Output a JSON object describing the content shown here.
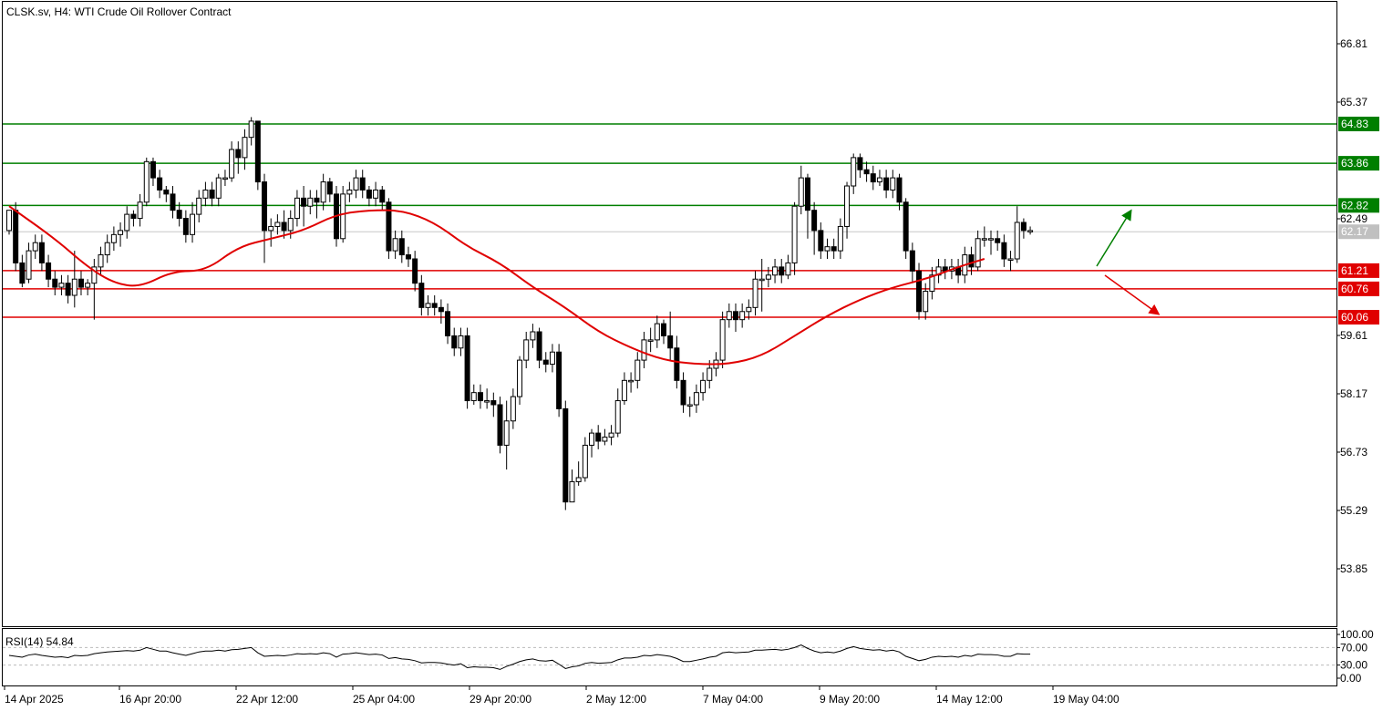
{
  "header": {
    "title": "CLSK.sv, H4:  WTI Crude Oil Rollover Contract"
  },
  "rsi_panel": {
    "label": "RSI(14) 54.84"
  },
  "colors": {
    "resistance": "#007f00",
    "support": "#e00000",
    "ma": "#e00000",
    "current_price_tag": "#c0c0c0",
    "bull_candle": "#ffffff",
    "bear_candle": "#000000"
  },
  "chart_data": [
    {
      "type": "candlestick",
      "symbol": "CLSK.sv",
      "timeframe": "H4",
      "instrument": "WTI Crude Oil Rollover Contract",
      "ylim": [
        52.8,
        67.7
      ],
      "y_ticks": [
        "66.81",
        "65.37",
        "62.49",
        "59.61",
        "58.17",
        "56.73",
        "55.29",
        "53.85"
      ],
      "x_ticks": [
        "14 Apr 2025",
        "16 Apr 20:00",
        "22 Apr 12:00",
        "25 Apr 04:00",
        "29 Apr 20:00",
        "2 May 12:00",
        "7 May 04:00",
        "9 May 20:00",
        "14 May 12:00",
        "19 May 04:00"
      ],
      "current_price": "62.17",
      "resistance_levels": [
        "64.83",
        "63.86",
        "62.82"
      ],
      "support_levels": [
        "61.21",
        "60.76",
        "60.06"
      ],
      "ma_points": [
        [
          0,
          62.8
        ],
        [
          7,
          62.0
        ],
        [
          12,
          61.3
        ],
        [
          16,
          60.9
        ],
        [
          20,
          60.8
        ],
        [
          25,
          61.2
        ],
        [
          30,
          61.2
        ],
        [
          35,
          61.8
        ],
        [
          40,
          62.0
        ],
        [
          45,
          62.2
        ],
        [
          50,
          62.6
        ],
        [
          55,
          62.7
        ],
        [
          60,
          62.7
        ],
        [
          65,
          62.4
        ],
        [
          70,
          61.8
        ],
        [
          75,
          61.4
        ],
        [
          80,
          60.8
        ],
        [
          85,
          60.3
        ],
        [
          90,
          59.7
        ],
        [
          95,
          59.3
        ],
        [
          100,
          59.0
        ],
        [
          105,
          58.9
        ],
        [
          110,
          58.9
        ],
        [
          115,
          59.1
        ],
        [
          120,
          59.6
        ],
        [
          125,
          60.1
        ],
        [
          130,
          60.5
        ],
        [
          135,
          60.8
        ],
        [
          140,
          61.0
        ],
        [
          145,
          61.3
        ],
        [
          149,
          61.5
        ]
      ],
      "candles": [
        [
          62.2,
          62.7,
          62.3,
          62.1
        ],
        [
          62.7,
          61.4,
          62.9,
          61.2
        ],
        [
          61.4,
          60.9,
          61.6,
          60.8
        ],
        [
          61.0,
          61.7,
          61.9,
          60.9
        ],
        [
          61.7,
          61.9,
          62.1,
          61.5
        ],
        [
          61.9,
          61.4,
          62.1,
          61.2
        ],
        [
          61.4,
          61.0,
          61.6,
          60.8
        ],
        [
          61.0,
          60.8,
          61.2,
          60.6
        ],
        [
          60.8,
          60.9,
          61.1,
          60.6
        ],
        [
          60.9,
          60.6,
          61.1,
          60.4
        ],
        [
          60.6,
          61.0,
          61.7,
          60.3
        ],
        [
          61.0,
          60.8,
          61.2,
          60.6
        ],
        [
          60.8,
          60.9,
          61.0,
          60.6
        ],
        [
          60.9,
          61.3,
          61.5,
          60.0
        ],
        [
          61.3,
          61.6,
          61.8,
          61.1
        ],
        [
          61.6,
          61.9,
          62.1,
          61.4
        ],
        [
          61.9,
          62.1,
          62.3,
          61.7
        ],
        [
          62.1,
          62.2,
          62.4,
          61.8
        ],
        [
          62.2,
          62.6,
          62.8,
          62.0
        ],
        [
          62.6,
          62.5,
          62.7,
          62.3
        ],
        [
          62.5,
          62.9,
          63.1,
          62.3
        ],
        [
          62.9,
          63.9,
          64.0,
          62.8
        ],
        [
          63.9,
          63.5,
          64.0,
          63.3
        ],
        [
          63.5,
          63.2,
          63.7,
          63.0
        ],
        [
          63.2,
          63.1,
          63.3,
          62.9
        ],
        [
          63.1,
          62.7,
          63.3,
          62.5
        ],
        [
          62.7,
          62.5,
          62.9,
          62.3
        ],
        [
          62.5,
          62.1,
          62.7,
          61.9
        ],
        [
          62.1,
          62.6,
          62.9,
          61.9
        ],
        [
          62.6,
          63.0,
          63.2,
          62.4
        ],
        [
          63.0,
          63.2,
          63.4,
          62.8
        ],
        [
          63.2,
          63.0,
          63.4,
          62.8
        ],
        [
          63.0,
          63.5,
          63.6,
          62.8
        ],
        [
          63.5,
          63.5,
          63.7,
          63.3
        ],
        [
          63.5,
          64.2,
          64.4,
          63.4
        ],
        [
          64.2,
          64.0,
          64.4,
          63.6
        ],
        [
          64.0,
          64.5,
          64.7,
          63.7
        ],
        [
          64.5,
          64.9,
          65.0,
          64.3
        ],
        [
          64.9,
          63.4,
          64.9,
          63.2
        ],
        [
          63.4,
          62.2,
          63.6,
          61.4
        ],
        [
          62.2,
          62.3,
          62.5,
          61.8
        ],
        [
          62.3,
          62.4,
          62.6,
          62.1
        ],
        [
          62.4,
          62.2,
          62.7,
          62.0
        ],
        [
          62.2,
          62.5,
          62.7,
          62.0
        ],
        [
          62.5,
          63.0,
          63.2,
          62.3
        ],
        [
          63.0,
          62.8,
          63.3,
          62.3
        ],
        [
          62.8,
          63.0,
          63.2,
          62.6
        ],
        [
          63.0,
          62.9,
          63.2,
          62.5
        ],
        [
          62.9,
          63.4,
          63.6,
          62.7
        ],
        [
          63.4,
          63.1,
          63.5,
          62.9
        ],
        [
          63.1,
          62.0,
          63.3,
          61.8
        ],
        [
          62.0,
          63.1,
          63.3,
          61.9
        ],
        [
          63.1,
          63.2,
          63.4,
          62.9
        ],
        [
          63.2,
          63.5,
          63.7,
          63.0
        ],
        [
          63.5,
          63.2,
          63.7,
          63.0
        ],
        [
          63.2,
          63.0,
          63.3,
          62.8
        ],
        [
          63.0,
          63.2,
          63.4,
          62.8
        ],
        [
          63.2,
          62.9,
          63.3,
          62.7
        ],
        [
          62.9,
          61.7,
          63.0,
          61.5
        ],
        [
          61.7,
          62.0,
          62.2,
          61.5
        ],
        [
          62.0,
          61.6,
          62.2,
          61.4
        ],
        [
          61.6,
          61.5,
          61.8,
          61.3
        ],
        [
          61.5,
          60.9,
          61.7,
          60.7
        ],
        [
          60.9,
          60.3,
          61.1,
          60.1
        ],
        [
          60.3,
          60.4,
          60.6,
          60.1
        ],
        [
          60.4,
          60.3,
          60.6,
          60.1
        ],
        [
          60.3,
          60.2,
          60.5,
          59.9
        ],
        [
          60.2,
          59.6,
          60.4,
          59.4
        ],
        [
          59.6,
          59.3,
          59.8,
          59.1
        ],
        [
          59.3,
          59.6,
          59.8,
          59.1
        ],
        [
          59.6,
          58.0,
          59.8,
          57.8
        ],
        [
          58.0,
          58.2,
          58.4,
          57.9
        ],
        [
          58.2,
          58.0,
          58.4,
          57.8
        ],
        [
          58.0,
          58.0,
          58.3,
          57.8
        ],
        [
          58.0,
          57.9,
          58.2,
          57.6
        ],
        [
          57.9,
          56.9,
          58.1,
          56.7
        ],
        [
          56.9,
          57.5,
          58.0,
          56.3
        ],
        [
          57.5,
          58.1,
          58.3,
          57.3
        ],
        [
          58.1,
          59.0,
          59.1,
          57.9
        ],
        [
          59.0,
          59.5,
          59.7,
          58.8
        ],
        [
          59.5,
          59.7,
          59.9,
          59.3
        ],
        [
          59.7,
          59.0,
          59.8,
          58.8
        ],
        [
          59.0,
          58.9,
          59.2,
          58.7
        ],
        [
          58.9,
          59.2,
          59.4,
          58.7
        ],
        [
          59.2,
          57.8,
          59.4,
          57.6
        ],
        [
          57.8,
          55.5,
          58.0,
          55.3
        ],
        [
          55.5,
          56.0,
          56.3,
          55.5
        ],
        [
          56.0,
          56.1,
          56.5,
          55.9
        ],
        [
          56.1,
          56.9,
          57.1,
          56.0
        ],
        [
          56.9,
          57.2,
          57.3,
          56.6
        ],
        [
          57.2,
          57.0,
          57.4,
          56.8
        ],
        [
          57.0,
          57.1,
          57.3,
          56.9
        ],
        [
          57.1,
          57.2,
          57.4,
          56.9
        ],
        [
          57.2,
          58.0,
          58.3,
          57.1
        ],
        [
          58.0,
          58.5,
          58.7,
          57.9
        ],
        [
          58.5,
          58.5,
          58.7,
          58.2
        ],
        [
          58.5,
          59.0,
          59.2,
          58.3
        ],
        [
          59.0,
          59.5,
          59.7,
          58.8
        ],
        [
          59.5,
          59.5,
          59.8,
          59.2
        ],
        [
          59.5,
          59.9,
          60.1,
          59.3
        ],
        [
          59.9,
          59.6,
          60.0,
          59.4
        ],
        [
          59.6,
          59.3,
          60.2,
          59.0
        ],
        [
          59.3,
          58.5,
          59.6,
          58.3
        ],
        [
          58.5,
          57.9,
          58.7,
          57.7
        ],
        [
          57.9,
          57.9,
          58.1,
          57.6
        ],
        [
          57.9,
          58.2,
          58.4,
          57.7
        ],
        [
          58.2,
          58.5,
          58.7,
          58.0
        ],
        [
          58.5,
          58.8,
          59.0,
          58.3
        ],
        [
          58.8,
          59.0,
          59.2,
          58.6
        ],
        [
          59.0,
          60.0,
          60.2,
          58.8
        ],
        [
          60.0,
          60.2,
          60.4,
          59.8
        ],
        [
          60.2,
          60.0,
          60.4,
          59.7
        ],
        [
          60.0,
          60.2,
          60.4,
          59.8
        ],
        [
          60.2,
          60.3,
          60.5,
          60.0
        ],
        [
          60.3,
          61.0,
          61.2,
          60.1
        ],
        [
          61.0,
          61.0,
          61.5,
          60.2
        ],
        [
          61.0,
          61.1,
          61.3,
          60.8
        ],
        [
          61.1,
          61.3,
          61.5,
          60.9
        ],
        [
          61.3,
          61.1,
          61.5,
          60.9
        ],
        [
          61.1,
          61.4,
          61.6,
          61.0
        ],
        [
          61.4,
          62.8,
          62.9,
          61.1
        ],
        [
          62.8,
          63.5,
          63.8,
          62.6
        ],
        [
          63.5,
          62.7,
          63.6,
          62.0
        ],
        [
          62.7,
          62.2,
          62.9,
          61.6
        ],
        [
          62.2,
          61.7,
          62.4,
          61.5
        ],
        [
          61.7,
          61.8,
          62.0,
          61.5
        ],
        [
          61.8,
          61.7,
          62.0,
          61.5
        ],
        [
          61.7,
          62.3,
          62.5,
          61.5
        ],
        [
          62.3,
          63.3,
          63.4,
          62.0
        ],
        [
          63.3,
          64.0,
          64.1,
          63.1
        ],
        [
          64.0,
          63.7,
          64.1,
          63.5
        ],
        [
          63.7,
          63.6,
          63.9,
          63.4
        ],
        [
          63.6,
          63.4,
          63.8,
          63.2
        ],
        [
          63.4,
          63.5,
          63.7,
          63.3
        ],
        [
          63.5,
          63.2,
          63.7,
          63.0
        ],
        [
          63.2,
          63.5,
          63.7,
          63.0
        ],
        [
          63.5,
          62.9,
          63.6,
          62.7
        ],
        [
          62.9,
          61.7,
          63.0,
          61.5
        ],
        [
          61.7,
          61.2,
          61.9,
          60.9
        ],
        [
          61.2,
          60.2,
          61.4,
          60.0
        ],
        [
          60.2,
          60.7,
          60.9,
          60.0
        ],
        [
          60.7,
          61.1,
          61.3,
          60.5
        ],
        [
          61.1,
          61.3,
          61.5,
          60.9
        ],
        [
          61.3,
          61.2,
          61.5,
          61.0
        ],
        [
          61.2,
          61.3,
          61.5,
          61.0
        ],
        [
          61.3,
          61.1,
          61.5,
          60.9
        ],
        [
          61.1,
          61.6,
          61.8,
          60.9
        ],
        [
          61.6,
          61.3,
          61.8,
          61.1
        ],
        [
          61.3,
          62.0,
          62.2,
          61.2
        ],
        [
          62.0,
          62.0,
          62.3,
          61.8
        ],
        [
          62.0,
          62.0,
          62.2,
          61.6
        ],
        [
          62.0,
          61.9,
          62.2,
          61.7
        ],
        [
          61.9,
          61.5,
          62.1,
          61.3
        ],
        [
          61.5,
          61.5,
          61.7,
          61.2
        ],
        [
          61.5,
          62.4,
          62.8,
          61.4
        ],
        [
          62.4,
          62.2,
          62.5,
          62.0
        ],
        [
          62.2,
          62.2,
          62.3,
          62.1
        ]
      ],
      "rsi": {
        "period": 14,
        "last": "54.84",
        "ylim": [
          0,
          100
        ],
        "y_ticks": [
          "100.00",
          "70.00",
          "30.00",
          "0.00"
        ],
        "levels": [
          70,
          30
        ],
        "values": [
          52,
          50,
          48,
          53,
          55,
          52,
          50,
          48,
          49,
          47,
          52,
          51,
          52,
          56,
          58,
          60,
          61,
          62,
          63,
          62,
          64,
          70,
          66,
          62,
          62,
          58,
          55,
          52,
          56,
          60,
          62,
          62,
          64,
          62,
          65,
          66,
          68,
          70,
          58,
          50,
          51,
          52,
          51,
          53,
          56,
          55,
          56,
          55,
          58,
          56,
          48,
          55,
          56,
          58,
          56,
          54,
          55,
          53,
          45,
          47,
          44,
          43,
          40,
          35,
          36,
          36,
          35,
          32,
          30,
          33,
          24,
          26,
          25,
          25,
          24,
          20,
          27,
          32,
          38,
          42,
          44,
          40,
          39,
          41,
          32,
          22,
          26,
          28,
          34,
          36,
          34,
          35,
          36,
          42,
          46,
          46,
          48,
          52,
          51,
          54,
          52,
          50,
          45,
          38,
          38,
          41,
          44,
          48,
          50,
          58,
          60,
          58,
          59,
          60,
          64,
          64,
          65,
          66,
          64,
          66,
          70,
          76,
          68,
          62,
          58,
          60,
          58,
          62,
          68,
          72,
          68,
          66,
          64,
          65,
          62,
          64,
          60,
          50,
          45,
          40,
          43,
          48,
          50,
          49,
          50,
          48,
          52,
          50,
          55,
          54,
          54,
          53,
          50,
          50,
          56,
          55,
          55
        ]
      }
    }
  ]
}
